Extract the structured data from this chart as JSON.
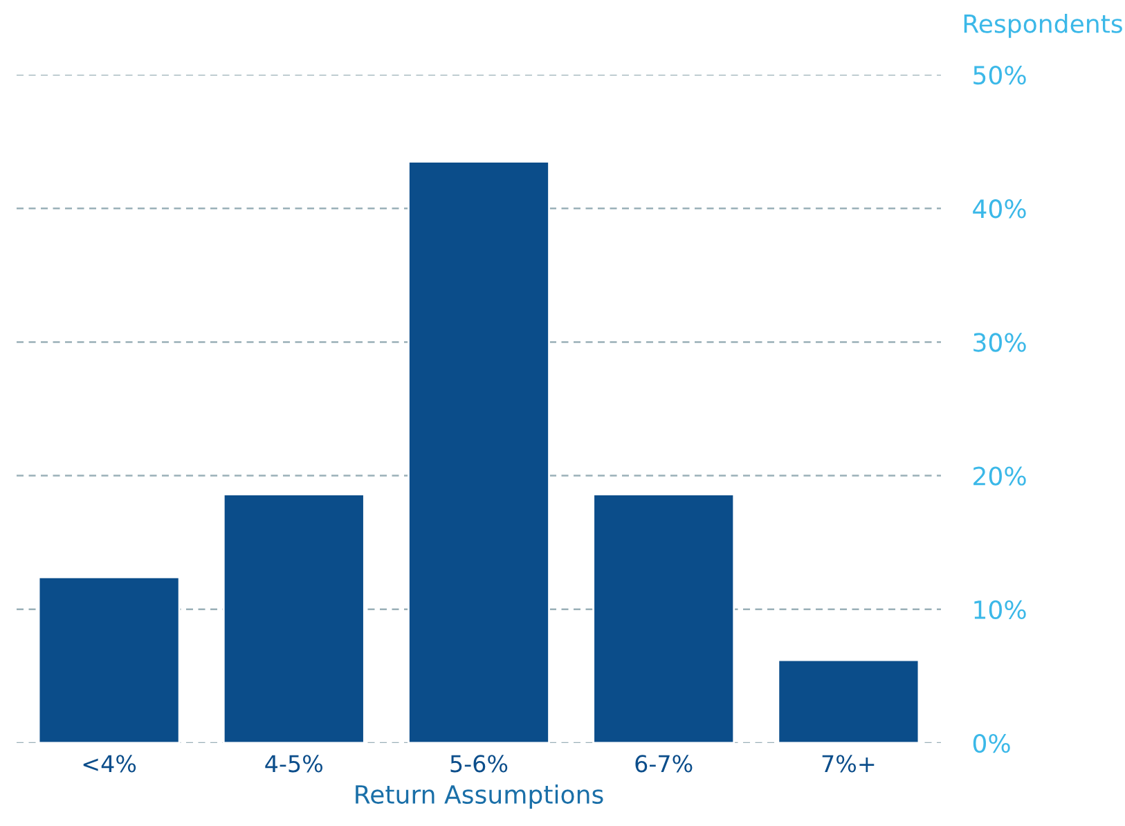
{
  "chart_data": {
    "type": "bar",
    "categories": [
      "<4%",
      "4-5%",
      "5-6%",
      "6-7%",
      "7%+"
    ],
    "values": [
      12.4,
      18.6,
      43.5,
      18.6,
      6.2
    ],
    "color": "#0b4d8a",
    "xlabel": "Return Assumptions",
    "ylabel": "Respondents",
    "ylim": [
      0,
      50
    ],
    "yticks": [
      {
        "value": 0,
        "label": "0%"
      },
      {
        "value": 10,
        "label": "10%"
      },
      {
        "value": 20,
        "label": "20%"
      },
      {
        "value": 30,
        "label": "30%"
      },
      {
        "value": 40,
        "label": "40%"
      },
      {
        "value": 50,
        "label": "50%"
      }
    ],
    "grid": "y"
  }
}
